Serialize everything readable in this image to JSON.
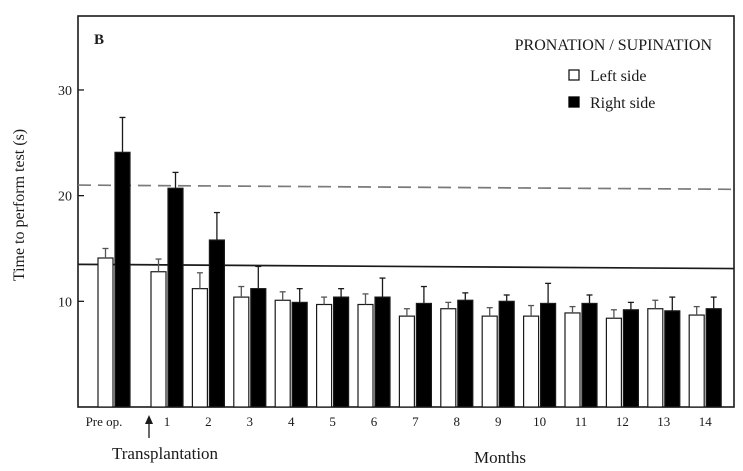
{
  "chart_data": {
    "type": "bar",
    "panel_label": "B",
    "title": "PRONATION / SUPINATION",
    "ylabel": "Time to perform test (s)",
    "xlabel": "Months",
    "annotation": "Transplantation",
    "ylim": [
      0,
      37
    ],
    "yticks": [
      10,
      20,
      30
    ],
    "categories": [
      "Pre op.",
      "1",
      "2",
      "3",
      "4",
      "5",
      "6",
      "7",
      "8",
      "9",
      "10",
      "11",
      "12",
      "13",
      "14"
    ],
    "series": [
      {
        "name": "Left side",
        "color": "#ffffff",
        "values": [
          14.1,
          12.8,
          11.2,
          10.4,
          10.1,
          9.7,
          9.7,
          8.6,
          9.3,
          8.6,
          8.6,
          8.9,
          8.4,
          9.3,
          8.7
        ],
        "errors": [
          0.9,
          1.2,
          1.5,
          1.0,
          0.8,
          0.7,
          1.0,
          0.7,
          0.6,
          0.8,
          1.0,
          0.6,
          0.8,
          0.8,
          0.8
        ]
      },
      {
        "name": "Right side",
        "color": "#000000",
        "values": [
          24.1,
          20.7,
          15.8,
          11.2,
          9.9,
          10.4,
          10.4,
          9.8,
          10.1,
          10.0,
          9.8,
          9.8,
          9.2,
          9.1,
          9.3
        ],
        "errors": [
          3.3,
          1.5,
          2.6,
          2.1,
          1.3,
          0.8,
          1.8,
          1.6,
          0.7,
          0.6,
          1.9,
          0.8,
          0.7,
          1.3,
          1.1
        ]
      }
    ],
    "reference_lines": [
      {
        "style": "dashed",
        "y_start": 21.0,
        "y_end": 20.6,
        "color": "#7a7a7a"
      },
      {
        "style": "solid",
        "y_start": 13.5,
        "y_end": 13.1,
        "color": "#1a1a1a"
      }
    ],
    "legend_position": "top-right",
    "grid": false
  }
}
